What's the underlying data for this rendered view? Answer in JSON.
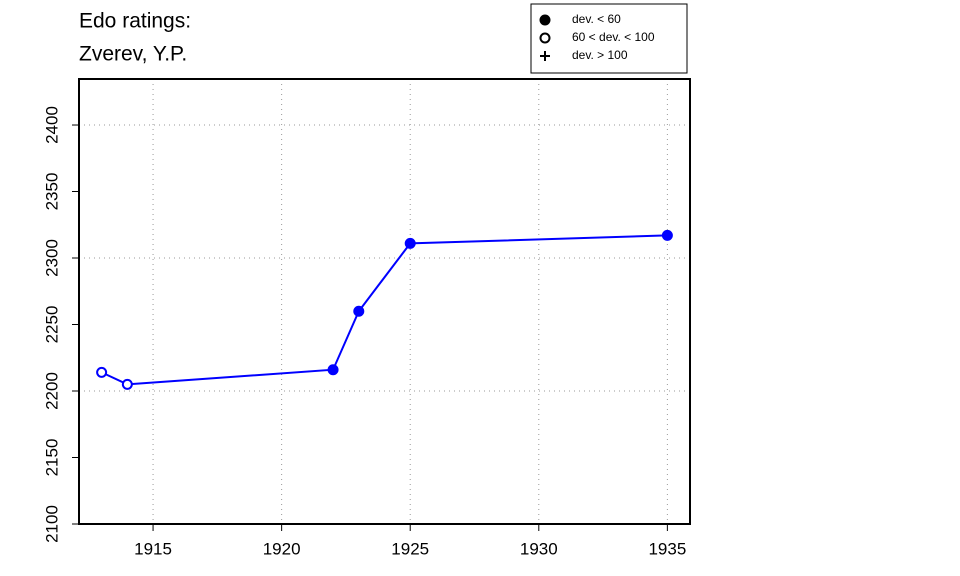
{
  "chart_data": {
    "type": "line",
    "title": "Edo ratings:",
    "subtitle": "Zverev, Y.P.",
    "x": [
      1913,
      1914,
      1922,
      1923,
      1925,
      1935
    ],
    "series": [
      {
        "name": "Zverev, Y.P.",
        "color": "#0000ff",
        "values": [
          2214,
          2205,
          2216,
          2260,
          2311,
          2317
        ],
        "point_styles": [
          "open",
          "open",
          "filled",
          "filled",
          "filled",
          "filled"
        ]
      }
    ],
    "xlim": [
      1912.12,
      1935.88
    ],
    "xticks": [
      1915,
      1920,
      1925,
      1930,
      1935
    ],
    "ylim": [
      2100,
      2434.6
    ],
    "yticks": [
      2100,
      2150,
      2200,
      2250,
      2300,
      2350,
      2400
    ],
    "xgrid": [
      1915,
      1920,
      1925,
      1930,
      1935
    ],
    "ygrid": [
      2200,
      2300,
      2400
    ],
    "legend": {
      "position": "top-right",
      "entries": [
        {
          "label": "dev. < 60",
          "symbol": "filled"
        },
        {
          "label": "60 < dev. < 100",
          "symbol": "open"
        },
        {
          "label": "dev. > 100",
          "symbol": "plus"
        }
      ]
    }
  }
}
